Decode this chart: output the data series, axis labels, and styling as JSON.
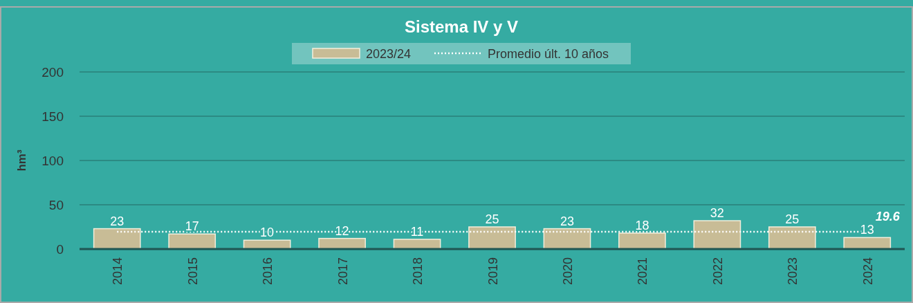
{
  "chart_data": {
    "type": "bar",
    "title": "Sistema IV y V",
    "ylabel": "hm³",
    "categories": [
      "2014",
      "2015",
      "2016",
      "2017",
      "2018",
      "2019",
      "2020",
      "2021",
      "2022",
      "2023",
      "2024"
    ],
    "series": [
      {
        "name": "2023/24",
        "color": "#c8bc96",
        "values": [
          23,
          17,
          10,
          12,
          11,
          25,
          23,
          18,
          32,
          25,
          13
        ],
        "value_labels": [
          "23",
          "17",
          "10",
          "12",
          "11",
          "25",
          "23",
          "18",
          "32",
          "25",
          "13"
        ]
      },
      {
        "name": "Promedio últ. 10 años",
        "type": "line",
        "line_style": "dotted",
        "color": "#ffffff",
        "values": [
          19.6,
          19.6,
          19.6,
          19.6,
          19.6,
          19.6,
          19.6,
          19.6,
          19.6,
          19.6,
          19.6
        ],
        "value_labels": [
          null,
          null,
          null,
          null,
          null,
          null,
          null,
          null,
          null,
          null,
          "19.6"
        ]
      }
    ],
    "ylim": [
      0,
      200
    ],
    "yticks": [
      0,
      50,
      100,
      150,
      200
    ],
    "grid": "y",
    "legend": "top"
  }
}
